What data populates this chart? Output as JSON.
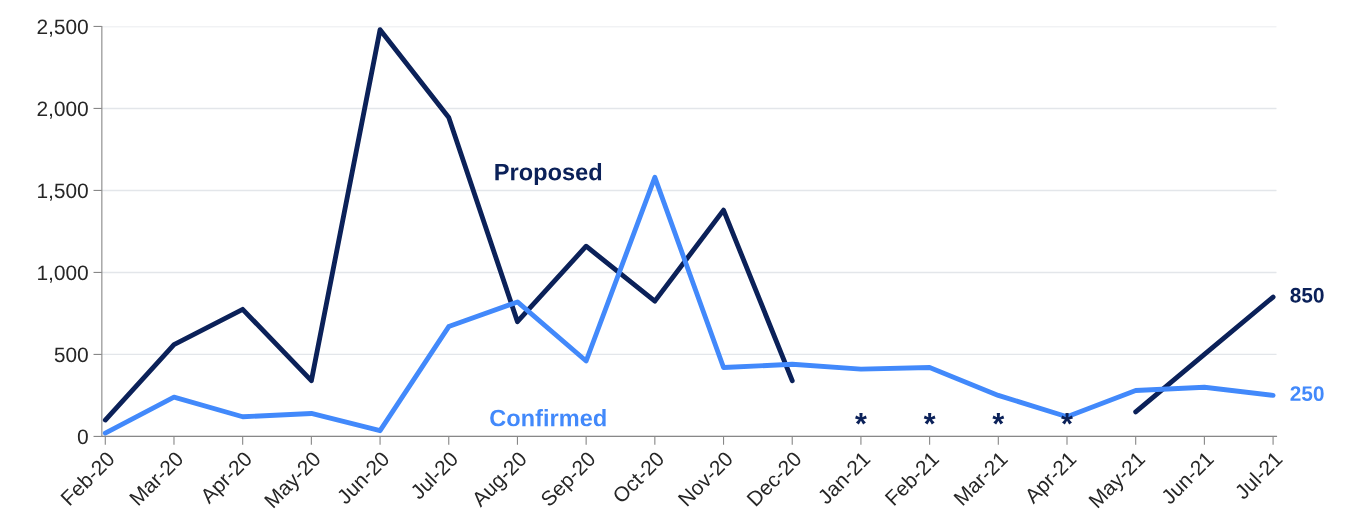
{
  "chart_data": {
    "type": "line",
    "categories": [
      "Feb-20",
      "Mar-20",
      "Apr-20",
      "May-20",
      "Jun-20",
      "Jul-20",
      "Aug-20",
      "Sep-20",
      "Oct-20",
      "Nov-20",
      "Dec-20",
      "Jan-21",
      "Feb-21",
      "Mar-21",
      "Apr-21",
      "May-21",
      "Jun-21",
      "Jul-21"
    ],
    "series": [
      {
        "name": "Proposed",
        "color": "#0b2159",
        "values": [
          100,
          560,
          775,
          340,
          2480,
          1945,
          700,
          1160,
          825,
          1380,
          340,
          null,
          null,
          null,
          null,
          150,
          500,
          850
        ],
        "value_labels": [
          null,
          null,
          null,
          null,
          null,
          null,
          null,
          null,
          null,
          null,
          null,
          null,
          null,
          null,
          null,
          null,
          null,
          "850"
        ]
      },
      {
        "name": "Confirmed",
        "color": "#4289fb",
        "values": [
          20,
          240,
          120,
          140,
          35,
          670,
          820,
          460,
          1580,
          420,
          440,
          410,
          420,
          250,
          120,
          280,
          300,
          250
        ],
        "value_labels": [
          null,
          null,
          null,
          null,
          null,
          null,
          null,
          null,
          null,
          null,
          null,
          null,
          null,
          null,
          null,
          null,
          null,
          "250"
        ]
      }
    ],
    "annotations": [
      "*",
      "*",
      "*",
      "*"
    ],
    "ylim": [
      0,
      2500
    ],
    "yticks": [
      {
        "value": 0,
        "label": "0"
      },
      {
        "value": 500,
        "label": "500"
      },
      {
        "value": 1000,
        "label": "1,000"
      },
      {
        "value": 1500,
        "label": "1,500"
      },
      {
        "value": 2000,
        "label": "2,000"
      },
      {
        "value": 2500,
        "label": "2,500"
      }
    ],
    "grid": "y",
    "legend": false,
    "marker": "none",
    "line_style": "solid"
  }
}
